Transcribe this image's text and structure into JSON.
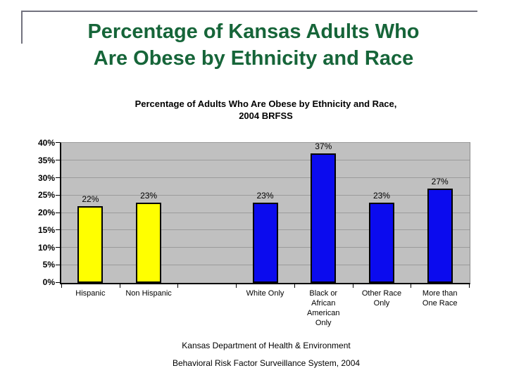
{
  "slide": {
    "title_line1": "Percentage of Kansas Adults Who",
    "title_line2": "Are Obese by Ethnicity and Race",
    "footer_line1": "Kansas Department of Health & Environment",
    "footer_line2": "Behavioral Risk Factor Surveillance System, 2004"
  },
  "colors": {
    "title_green": "#166539",
    "frame_gray": "#72727e",
    "plot_background": "#c0c0c0",
    "gridline_gray": "#9b9b9b",
    "bar_border_black": "#000000",
    "ethnicity_bar_yellow": "#ffff00",
    "race_bar_blue": "#0b0bee"
  },
  "chart_data": {
    "type": "bar",
    "title": "Percentage of Adults Who Are Obese by Ethnicity and Race,\n2004 BRFSS",
    "categories": [
      "Hispanic",
      "Non Hispanic",
      "White Only",
      "Black or\nAfrican\nAmerican\nOnly",
      "Other Race\nOnly",
      "More than\nOne Race"
    ],
    "values": [
      22,
      23,
      23,
      37,
      23,
      27
    ],
    "data_labels": [
      "22%",
      "23%",
      "23%",
      "37%",
      "23%",
      "27%"
    ],
    "bar_colors": [
      "#ffff00",
      "#ffff00",
      "#0b0bee",
      "#0b0bee",
      "#0b0bee",
      "#0b0bee"
    ],
    "xlabel": "",
    "ylabel": "",
    "ylim": [
      0,
      40
    ],
    "ytick_step": 5,
    "ytick_labels": [
      "0%",
      "5%",
      "10%",
      "15%",
      "20%",
      "25%",
      "30%",
      "35%",
      "40%"
    ],
    "grid": true,
    "legend": "none",
    "layout": {
      "blank_slot_after_index": 1,
      "plot_background": "#c0c0c0"
    }
  }
}
